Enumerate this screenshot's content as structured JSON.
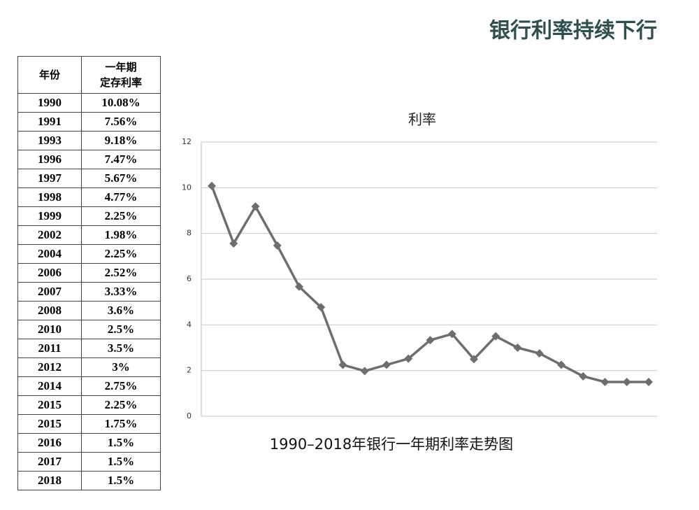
{
  "header": {
    "title": "银行利率持续下行"
  },
  "table": {
    "year_header": "年份",
    "rate_header": [
      "一年期",
      "定存利率"
    ],
    "rows": [
      [
        "1990",
        "10.08%"
      ],
      [
        "1991",
        "7.56%"
      ],
      [
        "1993",
        "9.18%"
      ],
      [
        "1996",
        "7.47%"
      ],
      [
        "1997",
        "5.67%"
      ],
      [
        "1998",
        "4.77%"
      ],
      [
        "1999",
        "2.25%"
      ],
      [
        "2002",
        "1.98%"
      ],
      [
        "2004",
        "2.25%"
      ],
      [
        "2006",
        "2.52%"
      ],
      [
        "2007",
        "3.33%"
      ],
      [
        "2008",
        "3.6%"
      ],
      [
        "2010",
        "2.5%"
      ],
      [
        "2011",
        "3.5%"
      ],
      [
        "2012",
        "3%"
      ],
      [
        "2014",
        "2.75%"
      ],
      [
        "2015",
        "2.25%"
      ],
      [
        "2015",
        "1.75%"
      ],
      [
        "2016",
        "1.5%"
      ],
      [
        "2017",
        "1.5%"
      ],
      [
        "2018",
        "1.5%"
      ]
    ]
  },
  "chart_data": {
    "type": "line",
    "title": "利率",
    "caption": "1990–2018年银行一年期利率走势图",
    "values": [
      10.08,
      7.56,
      9.18,
      7.47,
      5.67,
      4.77,
      2.25,
      1.98,
      2.25,
      2.52,
      3.33,
      3.6,
      2.5,
      3.5,
      3,
      2.75,
      2.25,
      1.75,
      1.5,
      1.5,
      1.5
    ],
    "color": "#6e6e6e",
    "ylim": [
      0,
      12
    ],
    "yticks": [
      0,
      2,
      4,
      6,
      8,
      10,
      12
    ],
    "grid": true
  }
}
